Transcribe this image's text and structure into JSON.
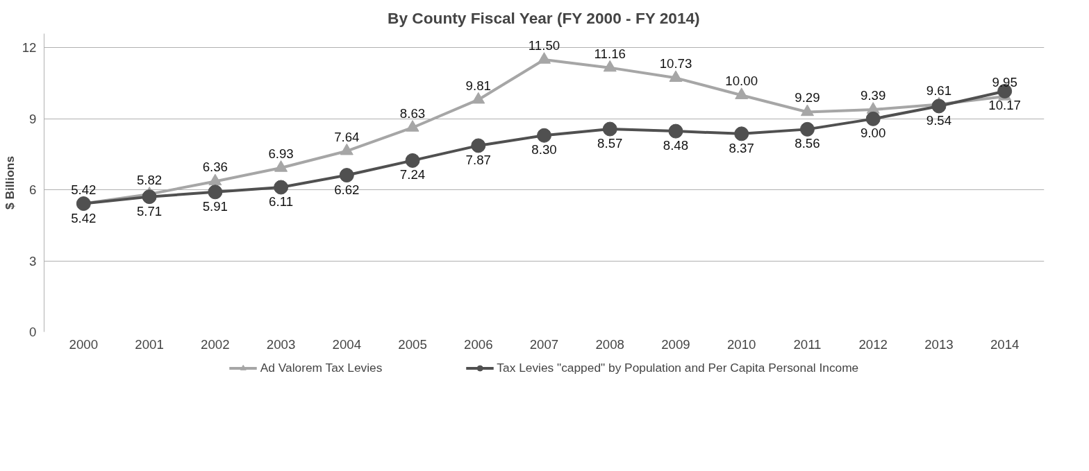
{
  "chart_data": {
    "type": "line",
    "title": "By County Fiscal Year (FY 2000 - FY 2014)",
    "ylabel": "$ Billions",
    "categories": [
      "2000",
      "2001",
      "2002",
      "2003",
      "2004",
      "2005",
      "2006",
      "2007",
      "2008",
      "2009",
      "2010",
      "2011",
      "2012",
      "2013",
      "2014"
    ],
    "series": [
      {
        "name": "Ad Valorem Tax Levies",
        "color": "#a6a6a6",
        "marker": "triangle",
        "values": [
          5.42,
          5.82,
          6.36,
          6.93,
          7.64,
          8.63,
          9.81,
          11.5,
          11.16,
          10.73,
          10.0,
          9.29,
          9.39,
          9.61,
          9.95
        ],
        "value_labels": [
          "5.42",
          "5.82",
          "6.36",
          "6.93",
          "7.64",
          "8.63",
          "9.81",
          "11.50",
          "11.16",
          "10.73",
          "10.00",
          "9.29",
          "9.39",
          "9.61",
          "9.95"
        ]
      },
      {
        "name": "Tax Levies \"capped\" by Population and Per Capita Personal Income",
        "color": "#505050",
        "marker": "circle",
        "values": [
          5.42,
          5.71,
          5.91,
          6.11,
          6.62,
          7.24,
          7.87,
          8.3,
          8.57,
          8.48,
          8.37,
          8.56,
          9.0,
          9.54,
          10.17
        ],
        "value_labels": [
          "5.42",
          "5.71",
          "5.91",
          "6.11",
          "6.62",
          "7.24",
          "7.87",
          "8.30",
          "8.57",
          "8.48",
          "8.37",
          "8.56",
          "9.00",
          "9.54",
          "10.17"
        ]
      }
    ],
    "ylim": [
      0,
      12.6
    ],
    "yticks": [
      0,
      3,
      6,
      9,
      12
    ],
    "grid": "y",
    "legend": "bottom"
  }
}
